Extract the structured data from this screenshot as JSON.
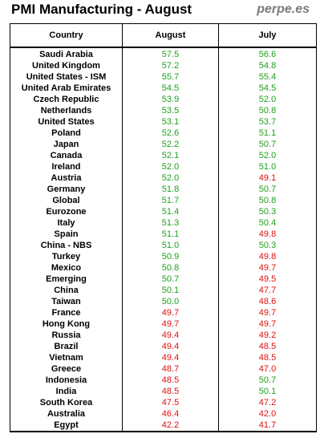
{
  "title": "PMI Manufacturing - August",
  "watermark": "perpe.es",
  "colors": {
    "above": "#1fa01f",
    "below": "#e01010"
  },
  "chart_data": {
    "type": "table",
    "threshold": 50,
    "columns": [
      "Country",
      "August",
      "July"
    ],
    "rows": [
      {
        "country": "Saudi Arabia",
        "august": "57.5",
        "july": "56.6"
      },
      {
        "country": "United Kingdom",
        "august": "57.2",
        "july": "54.8"
      },
      {
        "country": "United States - ISM",
        "august": "55.7",
        "july": "55.4"
      },
      {
        "country": "United Arab Emirates",
        "august": "54.5",
        "july": "54.5"
      },
      {
        "country": "Czech Republic",
        "august": "53.9",
        "july": "52.0"
      },
      {
        "country": "Netherlands",
        "august": "53.5",
        "july": "50.8"
      },
      {
        "country": "United States",
        "august": "53.1",
        "july": "53.7"
      },
      {
        "country": "Poland",
        "august": "52.6",
        "july": "51.1"
      },
      {
        "country": "Japan",
        "august": "52.2",
        "july": "50.7"
      },
      {
        "country": "Canada",
        "august": "52.1",
        "july": "52.0"
      },
      {
        "country": "Ireland",
        "august": "52.0",
        "july": "51.0"
      },
      {
        "country": "Austria",
        "august": "52.0",
        "july": "49.1"
      },
      {
        "country": "Germany",
        "august": "51.8",
        "july": "50.7"
      },
      {
        "country": "Global",
        "august": "51.7",
        "july": "50.8"
      },
      {
        "country": "Eurozone",
        "august": "51.4",
        "july": "50.3"
      },
      {
        "country": "Italy",
        "august": "51.3",
        "july": "50.4"
      },
      {
        "country": "Spain",
        "august": "51.1",
        "july": "49.8"
      },
      {
        "country": "China - NBS",
        "august": "51.0",
        "july": "50.3"
      },
      {
        "country": "Turkey",
        "august": "50.9",
        "july": "49.8"
      },
      {
        "country": "Mexico",
        "august": "50.8",
        "july": "49.7"
      },
      {
        "country": "Emerging",
        "august": "50.7",
        "july": "49.5"
      },
      {
        "country": "China",
        "august": "50.1",
        "july": "47.7"
      },
      {
        "country": "Taiwan",
        "august": "50.0",
        "july": "48.6"
      },
      {
        "country": "France",
        "august": "49.7",
        "july": "49.7"
      },
      {
        "country": "Hong Kong",
        "august": "49.7",
        "july": "49.7"
      },
      {
        "country": "Russia",
        "august": "49.4",
        "july": "49.2"
      },
      {
        "country": "Brazil",
        "august": "49.4",
        "july": "48.5"
      },
      {
        "country": "Vietnam",
        "august": "49.4",
        "july": "48.5"
      },
      {
        "country": "Greece",
        "august": "48.7",
        "july": "47.0"
      },
      {
        "country": "Indonesia",
        "august": "48.5",
        "july": "50.7"
      },
      {
        "country": "India",
        "august": "48.5",
        "july": "50.1"
      },
      {
        "country": "South Korea",
        "august": "47.5",
        "july": "47.2"
      },
      {
        "country": "Australia",
        "august": "46.4",
        "july": "42.0"
      },
      {
        "country": "Egypt",
        "august": "42.2",
        "july": "41.7"
      }
    ]
  }
}
